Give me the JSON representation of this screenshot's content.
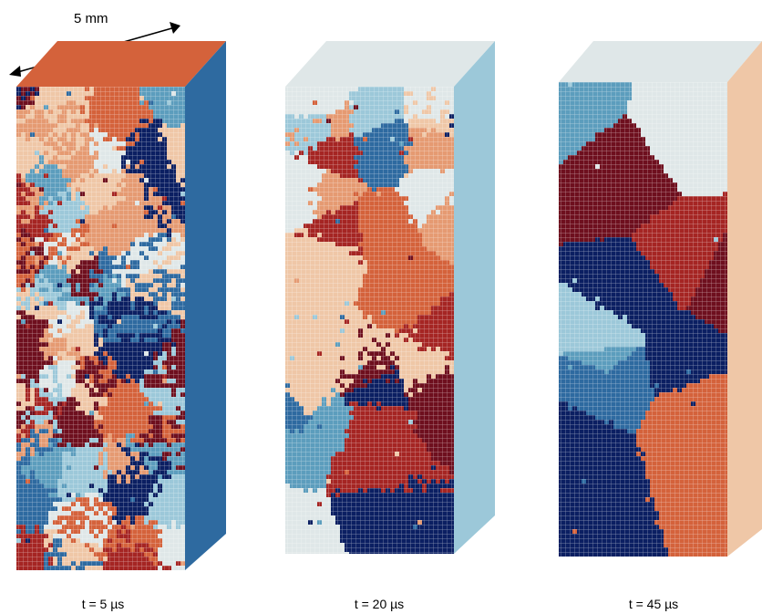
{
  "scale_bar": {
    "label": "5 mm"
  },
  "panels": [
    {
      "caption": "t = 5 µs",
      "grain_size": "fine"
    },
    {
      "caption": "t = 20 µs",
      "grain_size": "medium"
    },
    {
      "caption": "t = 45 µs",
      "grain_size": "coarse"
    }
  ],
  "palette": [
    "#0b1f62",
    "#2e6aa0",
    "#5c9dbd",
    "#9cc8d9",
    "#dfe7e8",
    "#efc7a7",
    "#e59a72",
    "#d4623b",
    "#a52523",
    "#6e0f1e"
  ],
  "voxel_grid_color": "#ffffff"
}
